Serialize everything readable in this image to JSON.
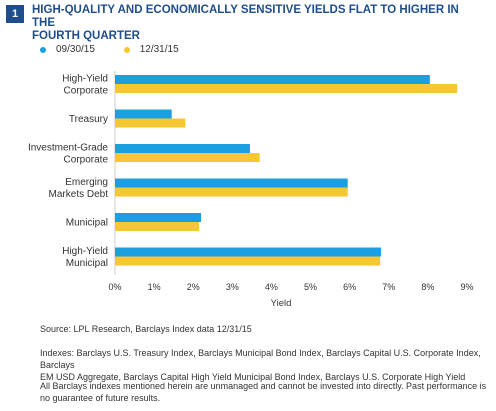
{
  "figure": {
    "badge": "1",
    "title_line1": "HIGH-QUALITY AND ECONOMICALLY SENSITIVE YIELDS FLAT TO HIGHER IN THE",
    "title_line2": "FOURTH QUARTER"
  },
  "colors": {
    "series1": "#1aa0e0",
    "series2": "#f5c732",
    "axis": "#cccccc",
    "badge": "#1f4e8c"
  },
  "chart_data": {
    "type": "bar",
    "orientation": "horizontal",
    "title": "HIGH-QUALITY AND ECONOMICALLY SENSITIVE YIELDS FLAT TO HIGHER IN THE FOURTH QUARTER",
    "xlabel": "Yield",
    "ylabel": "",
    "xlim": [
      0,
      9
    ],
    "xticks": [
      "0%",
      "1%",
      "2%",
      "3%",
      "4%",
      "5%",
      "6%",
      "7%",
      "8%",
      "9%"
    ],
    "grid": false,
    "legend_position": "top-left",
    "categories": [
      [
        "High-Yield",
        "Corporate"
      ],
      [
        "Treasury"
      ],
      [
        "Investment-Grade",
        "Corporate"
      ],
      [
        "Emerging",
        "Markets Debt"
      ],
      [
        "Municipal"
      ],
      [
        "High-Yield",
        "Municipal"
      ]
    ],
    "series": [
      {
        "name": "09/30/15",
        "values": [
          8.05,
          1.45,
          3.45,
          5.95,
          2.2,
          6.8
        ]
      },
      {
        "name": "12/31/15",
        "values": [
          8.75,
          1.8,
          3.7,
          5.95,
          2.15,
          6.78
        ]
      }
    ]
  },
  "footer": {
    "source": "Source: LPL Research, Barclays Index data   12/31/15",
    "indexes_line1": "Indexes: Barclays U.S. Treasury Index, Barclays Municipal Bond Index, Barclays Capital U.S. Corporate Index, Barclays",
    "indexes_line2": "EM USD Aggregate, Barclays Capital High Yield Municipal Bond Index, Barclays U.S. Corporate High Yield",
    "disclaimer_line1": "All Barclays indexes mentioned herein are unmanaged and cannot be invested into directly. Past performance is",
    "disclaimer_line2": "no guarantee of future results."
  }
}
